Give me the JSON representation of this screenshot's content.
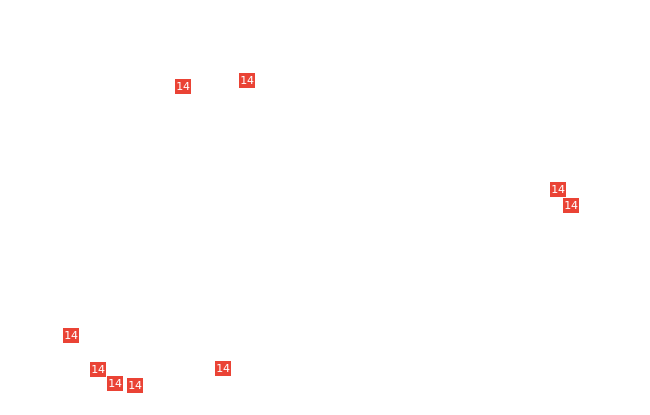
{
  "map": {
    "marker_color": "#ea4335",
    "markers": [
      {
        "label": "14"
      },
      {
        "label": "14"
      },
      {
        "label": "14"
      },
      {
        "label": "14"
      },
      {
        "label": "14"
      },
      {
        "label": "14"
      },
      {
        "label": "14"
      },
      {
        "label": "14"
      },
      {
        "label": "14"
      }
    ]
  }
}
